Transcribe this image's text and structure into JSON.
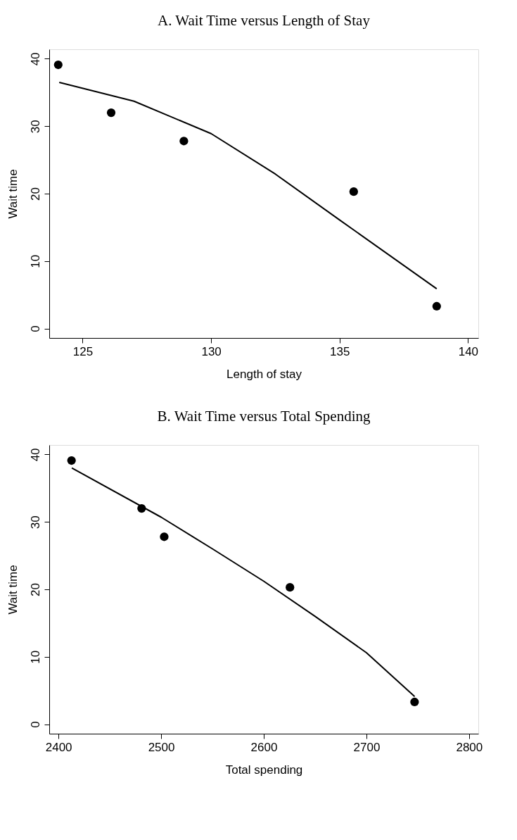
{
  "chart_data": [
    {
      "type": "scatter",
      "title": "A. Wait Time versus Length of Stay",
      "xlabel": "Length of stay",
      "ylabel": "Wait time",
      "xlim": [
        123.7,
        140.4
      ],
      "ylim": [
        -1.4,
        41.4
      ],
      "xticks": [
        125,
        130,
        135,
        140
      ],
      "yticks": [
        0,
        10,
        20,
        30,
        40
      ],
      "grid": false,
      "series": [
        {
          "marker": "circle",
          "color": "#000000",
          "x": [
            124.05,
            126.11,
            128.94,
            135.55,
            138.78
          ],
          "values": [
            39.1,
            32.0,
            27.8,
            20.3,
            3.3
          ]
        },
        {
          "type": "line",
          "marker": "none",
          "line_style": "solid",
          "color": "#000000",
          "x": [
            124.09,
            127,
            130,
            132.5,
            135,
            138.78
          ],
          "values": [
            36.5,
            33.7,
            28.9,
            22.9,
            16.1,
            5.9
          ]
        }
      ]
    },
    {
      "type": "scatter",
      "title": "B. Wait Time versus Total Spending",
      "xlabel": "Total spending",
      "ylabel": "Wait time",
      "xlim": [
        2391,
        2809
      ],
      "ylim": [
        -1.4,
        41.4
      ],
      "xticks": [
        2400,
        2500,
        2600,
        2700,
        2800
      ],
      "yticks": [
        0,
        10,
        20,
        30,
        40
      ],
      "grid": false,
      "series": [
        {
          "marker": "circle",
          "color": "#000000",
          "x": [
            2412.7,
            2481,
            2503,
            2625.5,
            2746.9
          ],
          "values": [
            39.1,
            32.0,
            27.8,
            20.3,
            3.3
          ]
        },
        {
          "type": "line",
          "marker": "none",
          "line_style": "solid",
          "color": "#000000",
          "x": [
            2413,
            2500,
            2550,
            2600,
            2650,
            2700,
            2747
          ],
          "values": [
            38.0,
            30.7,
            26.0,
            21.2,
            16.0,
            10.6,
            4.1
          ]
        }
      ]
    }
  ]
}
